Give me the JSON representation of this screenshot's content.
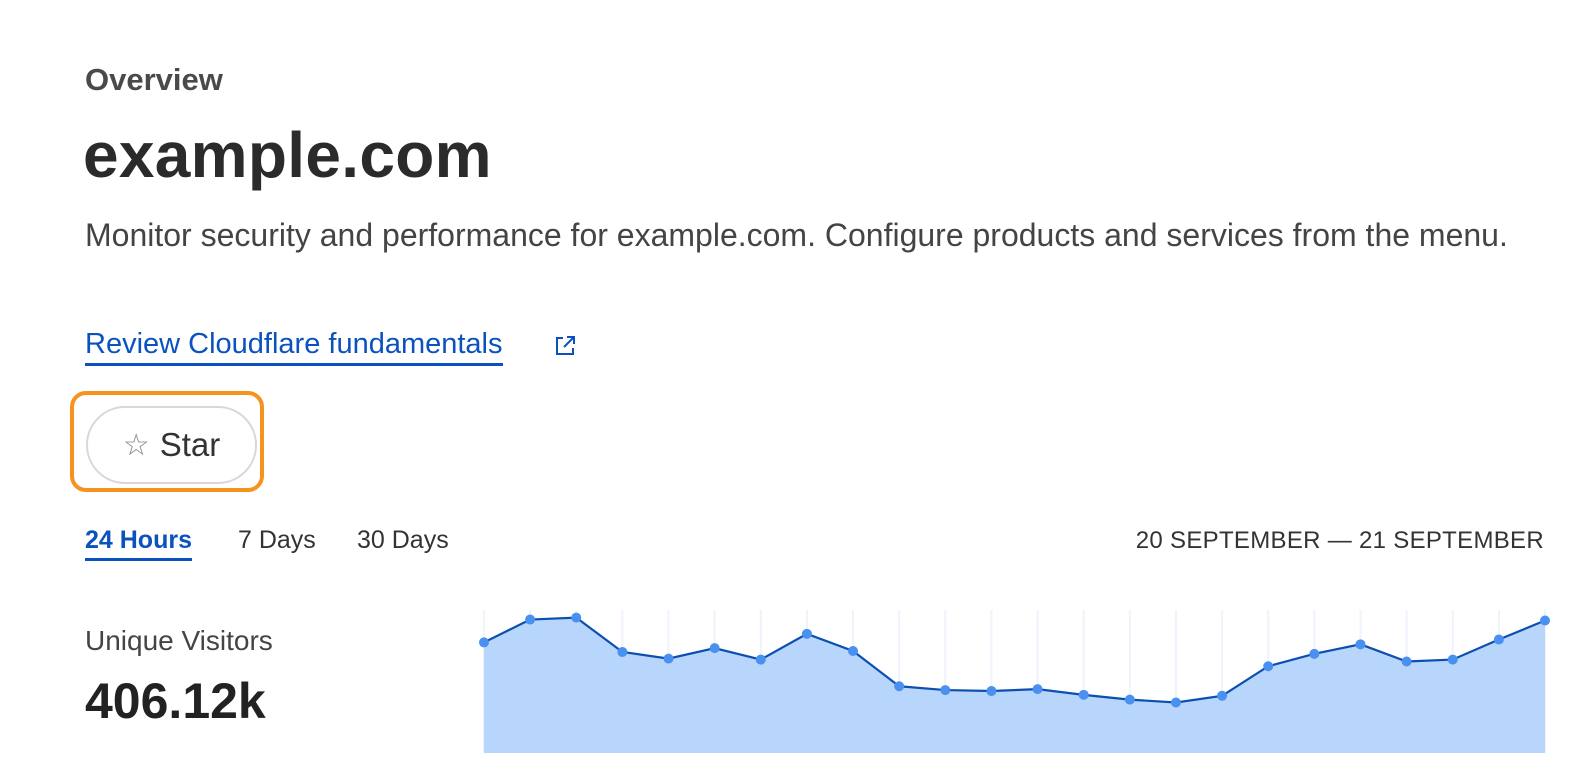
{
  "header": {
    "eyebrow": "Overview",
    "title": "example.com",
    "description": "Monitor security and performance for example.com. Configure products and services from the menu.",
    "link_label": "Review Cloudflare fundamentals",
    "link_icon": "external-link-icon"
  },
  "star_button": {
    "label": "Star",
    "icon": "star-outline-icon",
    "focus_color": "#f6921e"
  },
  "time_tabs": [
    {
      "label": "24 Hours",
      "active": true
    },
    {
      "label": "7 Days",
      "active": false
    },
    {
      "label": "30 Days",
      "active": false
    }
  ],
  "date_range": "20 SEPTEMBER — 21 SEPTEMBER",
  "metric": {
    "label": "Unique Visitors",
    "value": "406.12k"
  },
  "colors": {
    "accent": "#0a52bf",
    "line": "#0b4fb0",
    "fill": "#b8d6fb",
    "dot": "#4a90f0"
  },
  "chart_data": {
    "type": "area",
    "values": [
      116,
      140,
      142,
      106,
      99,
      110,
      98,
      125,
      107,
      70,
      66,
      65,
      67,
      61,
      56,
      53,
      60,
      91,
      104,
      114,
      96,
      98,
      119,
      139
    ]
  }
}
